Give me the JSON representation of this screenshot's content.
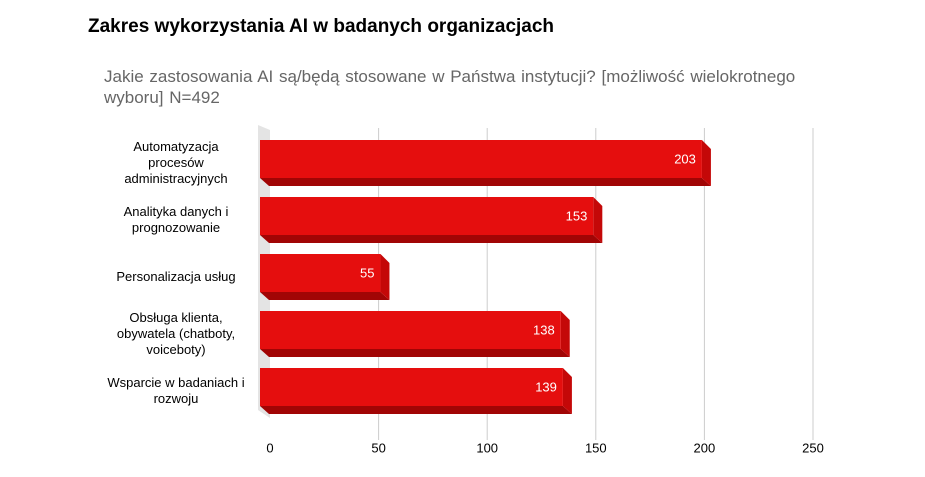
{
  "chart_data": {
    "type": "bar",
    "orientation": "horizontal",
    "title": "Zakres wykorzystania AI w badanych organizacjach",
    "subtitle": "Jakie zastosowania AI są/będą stosowane w Państwa instytucji? [możliwość wielokrotnego wyboru] N=492",
    "categories": [
      "Automatyzacja procesów administracyjnych",
      "Analityka danych i prognozowanie",
      "Personalizacja usług",
      "Obsługa klienta, obywatela (chatboty, voiceboty)",
      "Wsparcie w badaniach i rozwoju"
    ],
    "values": [
      203,
      153,
      55,
      138,
      139
    ],
    "color": "#e50e0e",
    "xlim": [
      0,
      250
    ],
    "xticks": [
      0,
      50,
      100,
      150,
      200,
      250
    ],
    "grid": true
  }
}
